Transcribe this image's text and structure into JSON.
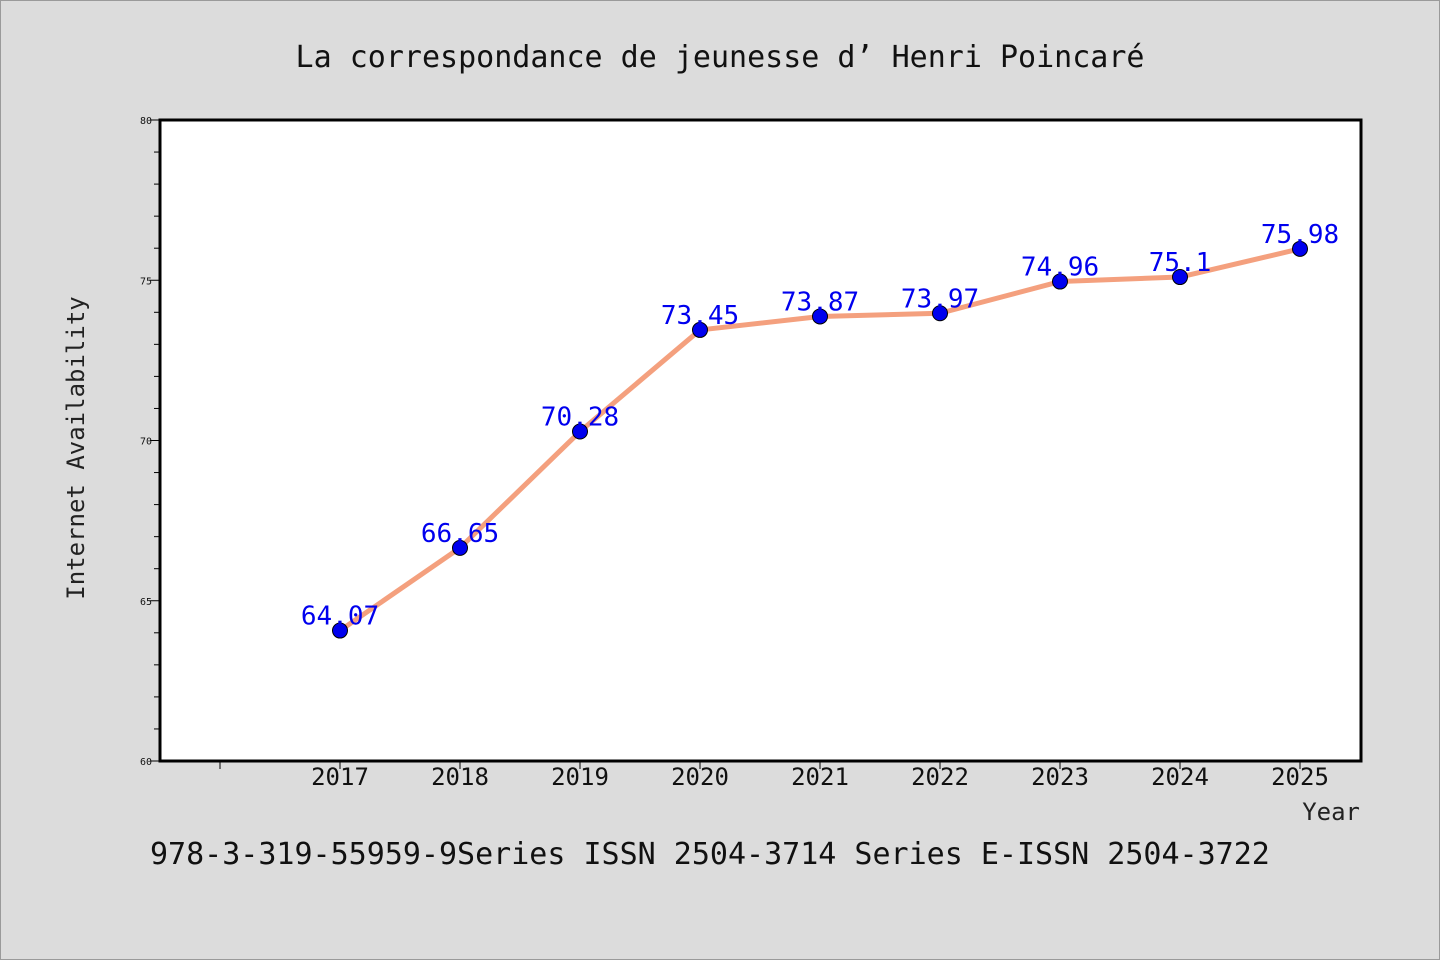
{
  "chart_data": {
    "type": "line",
    "title": "La correspondance de jeunesse d’ Henri Poincaré",
    "xlabel": "Year",
    "ylabel": "Internet Availability",
    "categories": [
      "2017",
      "2018",
      "2019",
      "2020",
      "2021",
      "2022",
      "2023",
      "2024",
      "2025"
    ],
    "series": [
      {
        "values": [
          64.07,
          66.65,
          70.28,
          73.45,
          73.87,
          73.97,
          74.96,
          75.1,
          75.98
        ],
        "labels": [
          "64.07",
          "66.65",
          "70.28",
          "73.45",
          "73.87",
          "73.97",
          "74.96",
          "75.1",
          "75.98"
        ]
      }
    ],
    "ylim": [
      60,
      80
    ],
    "y_ticks": [
      "60",
      "65",
      "70",
      "75",
      "80"
    ],
    "grid": false,
    "line_color": "#f4a07e",
    "marker_color": "#0000ee",
    "label_color": "#0000ee"
  },
  "footer": {
    "text": "978-3-319-55959-9Series ISSN 2504-3714 Series E-ISSN 2504-3722"
  },
  "colors": {
    "background": "#dcdcdc",
    "plot_background": "#ffffff"
  }
}
